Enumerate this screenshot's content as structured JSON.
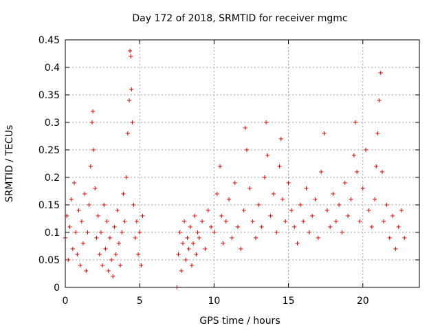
{
  "chart_data": {
    "type": "scatter",
    "title": "Day 172 of 2018, SRMTID for receiver mgmc",
    "xlabel": "GPS time / hours",
    "ylabel": "SRMTID / TECUs",
    "xlim": [
      0,
      23.8
    ],
    "ylim": [
      0,
      0.45
    ],
    "grid": true,
    "x_ticks": [
      0,
      5,
      10,
      15,
      20
    ],
    "x_tick_labels": [
      "0",
      "5",
      "10",
      "15",
      "20"
    ],
    "y_ticks": [
      0,
      0.05,
      0.1,
      0.15,
      0.2,
      0.25,
      0.3,
      0.35,
      0.4,
      0.45
    ],
    "y_tick_labels": [
      "0",
      "0.05",
      "0.1",
      "0.15",
      "0.2",
      "0.25",
      "0.3",
      "0.35",
      "0.4",
      "0.45"
    ],
    "marker": "+",
    "marker_color": "#e00000",
    "series": [
      {
        "name": "SRMTID",
        "x": [
          0.0,
          0.1,
          0.2,
          0.3,
          0.4,
          0.5,
          0.6,
          0.7,
          0.8,
          0.9,
          1.0,
          1.1,
          1.2,
          1.3,
          1.4,
          1.5,
          1.6,
          1.7,
          1.8,
          1.85,
          1.9,
          2.0,
          2.1,
          2.2,
          2.3,
          2.4,
          2.5,
          2.6,
          2.7,
          2.8,
          2.9,
          3.0,
          3.1,
          3.2,
          3.3,
          3.4,
          3.5,
          3.6,
          3.7,
          3.8,
          3.9,
          4.0,
          4.1,
          4.2,
          4.3,
          4.35,
          4.4,
          4.45,
          4.5,
          4.6,
          4.7,
          4.8,
          4.9,
          5.0,
          5.1,
          5.2,
          7.5,
          7.6,
          7.7,
          7.8,
          7.9,
          8.0,
          8.1,
          8.2,
          8.3,
          8.4,
          8.5,
          8.6,
          8.7,
          8.8,
          8.9,
          9.0,
          9.2,
          9.4,
          9.6,
          9.8,
          10.0,
          10.2,
          10.4,
          10.5,
          10.6,
          10.8,
          11.0,
          11.2,
          11.4,
          11.6,
          11.8,
          12.0,
          12.1,
          12.2,
          12.4,
          12.6,
          12.8,
          13.0,
          13.2,
          13.4,
          13.5,
          13.6,
          13.8,
          14.0,
          14.2,
          14.4,
          14.5,
          14.6,
          14.8,
          15.0,
          15.2,
          15.4,
          15.6,
          15.8,
          16.0,
          16.2,
          16.4,
          16.6,
          16.8,
          17.0,
          17.2,
          17.4,
          17.6,
          17.8,
          18.0,
          18.2,
          18.4,
          18.6,
          18.8,
          19.0,
          19.2,
          19.4,
          19.5,
          19.6,
          19.8,
          20.0,
          20.2,
          20.4,
          20.6,
          20.8,
          20.9,
          21.0,
          21.1,
          21.2,
          21.3,
          21.4,
          21.6,
          21.8,
          22.0,
          22.2,
          22.4,
          22.6,
          22.8
        ],
        "y": [
          0.09,
          0.13,
          0.05,
          0.11,
          0.16,
          0.07,
          0.19,
          0.1,
          0.06,
          0.14,
          0.04,
          0.12,
          0.08,
          0.17,
          0.03,
          0.1,
          0.15,
          0.22,
          0.3,
          0.32,
          0.25,
          0.18,
          0.09,
          0.13,
          0.06,
          0.1,
          0.04,
          0.15,
          0.07,
          0.12,
          0.03,
          0.09,
          0.05,
          0.02,
          0.11,
          0.06,
          0.14,
          0.08,
          0.04,
          0.1,
          0.17,
          0.12,
          0.2,
          0.28,
          0.34,
          0.43,
          0.42,
          0.36,
          0.3,
          0.15,
          0.09,
          0.12,
          0.06,
          0.1,
          0.04,
          0.13,
          0.0,
          0.06,
          0.1,
          0.03,
          0.08,
          0.12,
          0.05,
          0.09,
          0.07,
          0.11,
          0.04,
          0.08,
          0.13,
          0.06,
          0.1,
          0.09,
          0.12,
          0.07,
          0.14,
          0.11,
          0.1,
          0.17,
          0.22,
          0.13,
          0.08,
          0.12,
          0.16,
          0.09,
          0.19,
          0.11,
          0.07,
          0.14,
          0.29,
          0.25,
          0.18,
          0.12,
          0.09,
          0.15,
          0.11,
          0.2,
          0.3,
          0.24,
          0.13,
          0.17,
          0.1,
          0.22,
          0.27,
          0.16,
          0.12,
          0.19,
          0.14,
          0.11,
          0.08,
          0.15,
          0.12,
          0.18,
          0.1,
          0.13,
          0.16,
          0.09,
          0.21,
          0.28,
          0.14,
          0.11,
          0.17,
          0.12,
          0.15,
          0.1,
          0.19,
          0.13,
          0.16,
          0.24,
          0.3,
          0.21,
          0.12,
          0.18,
          0.25,
          0.14,
          0.11,
          0.16,
          0.22,
          0.28,
          0.34,
          0.39,
          0.21,
          0.12,
          0.15,
          0.09,
          0.13,
          0.07,
          0.11,
          0.14,
          0.09
        ]
      }
    ]
  }
}
